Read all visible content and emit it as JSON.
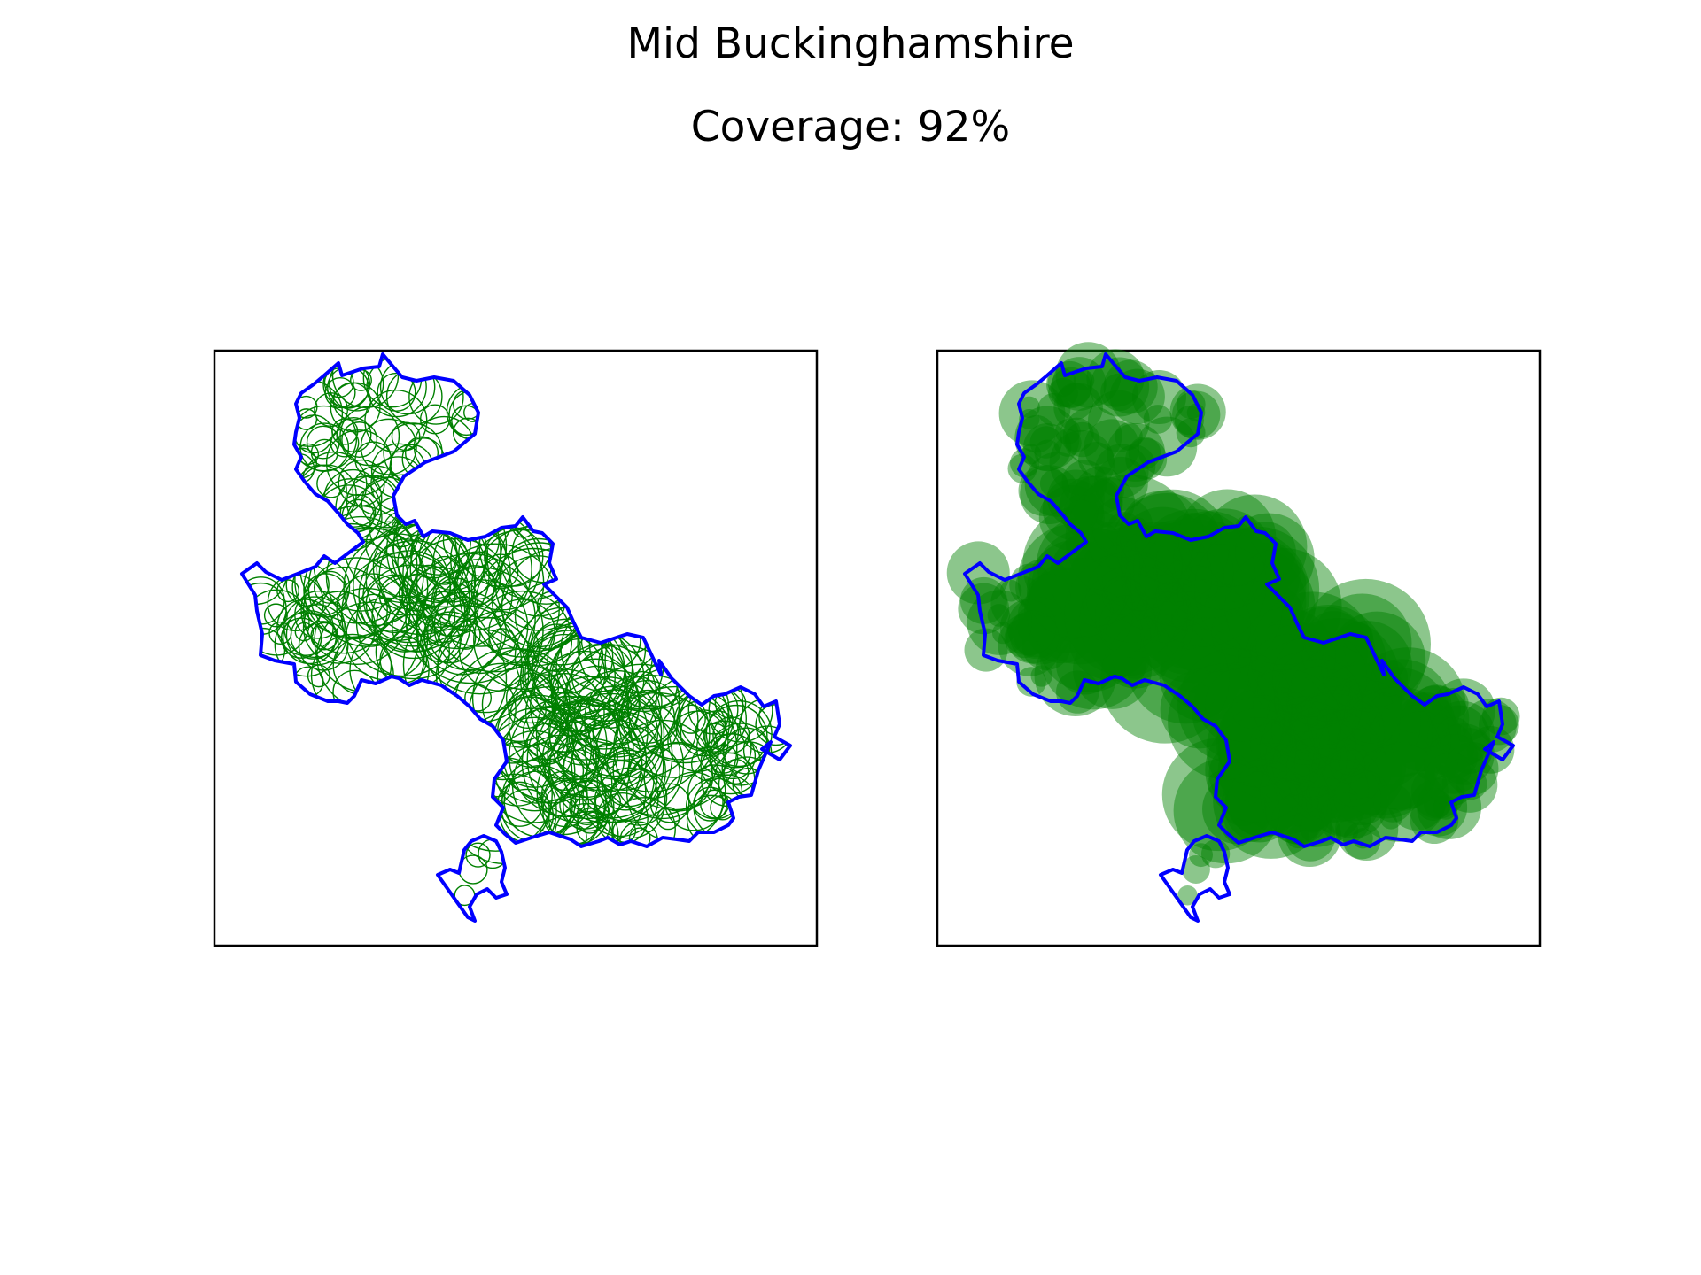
{
  "title": "Mid Buckinghamshire",
  "subtitle": "Coverage: 92%",
  "colors": {
    "boundary": "#0000ff",
    "circle": "#008000",
    "frame": "#000000",
    "background": "#ffffff"
  },
  "chart_data": [
    {
      "type": "map",
      "panel": "left",
      "style": "circle outlines",
      "boundary_color": "#0000ff",
      "circle_color": "#008000",
      "fill": false
    },
    {
      "type": "map",
      "panel": "right",
      "style": "filled translucent circles",
      "boundary_color": "#0000ff",
      "circle_color": "#008000",
      "fill": true,
      "fill_opacity": 0.45
    }
  ]
}
